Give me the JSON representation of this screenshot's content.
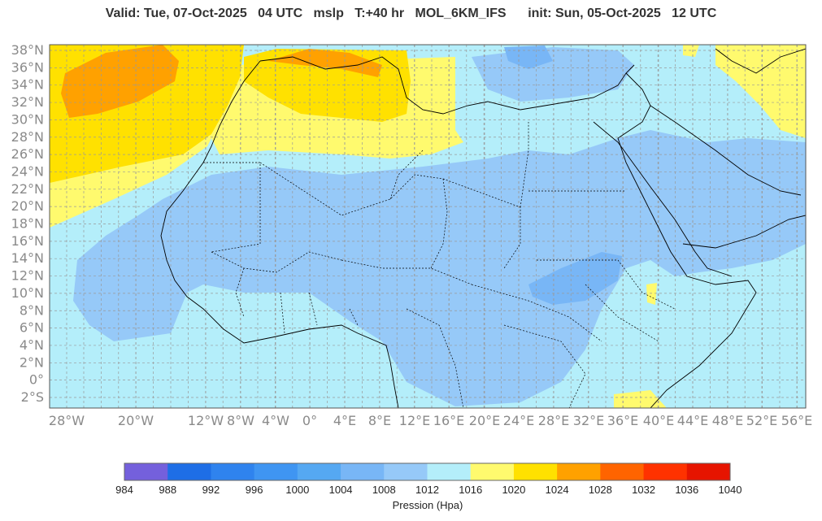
{
  "title": {
    "valid": "Valid: Tue, 07-Oct-2025   04 UTC",
    "var": "mslp",
    "lead": "T:+40 hr",
    "model": "MOL_6KM_IFS",
    "init": "init: Sun, 05-Oct-2025   12 UTC"
  },
  "lat_labels": [
    "38°N",
    "36°N",
    "34°N",
    "32°N",
    "30°N",
    "28°N",
    "26°N",
    "24°N",
    "22°N",
    "20°N",
    "18°N",
    "16°N",
    "14°N",
    "12°N",
    "10°N",
    "8°N",
    "6°N",
    "4°N",
    "2°N",
    "0°",
    "2°S"
  ],
  "lon_labels": [
    "28°W",
    "20°W",
    "12°W",
    "8°W",
    "4°W",
    "0°",
    "4°E",
    "8°E",
    "12°E",
    "16°E",
    "20°E",
    "24°E",
    "28°E",
    "32°E",
    "36°E",
    "40°E",
    "44°E",
    "48°E",
    "52°E",
    "56°E"
  ],
  "colorbar": {
    "title": "Pression (Hpa)",
    "labels": [
      "984",
      "988",
      "992",
      "996",
      "1000",
      "1004",
      "1008",
      "1012",
      "1016",
      "1020",
      "1024",
      "1028",
      "1032",
      "1036",
      "1040"
    ],
    "colors": [
      "#7460dc",
      "#1e6ee6",
      "#2f83ee",
      "#3f95f2",
      "#55a8f2",
      "#78b6f6",
      "#96c9f8",
      "#b4eefa",
      "#fffa6e",
      "#ffe100",
      "#ffa100",
      "#ff6400",
      "#ff3200",
      "#e61400"
    ]
  }
}
